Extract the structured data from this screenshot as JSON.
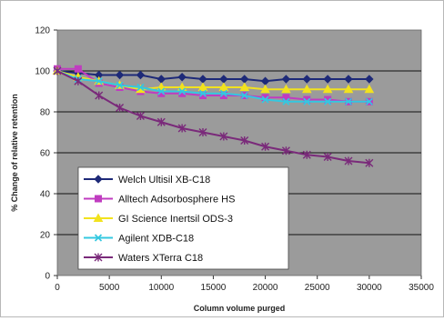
{
  "chart_data": {
    "type": "line",
    "title": "",
    "xlabel": "Column volume purged",
    "ylabel": "% Change of relative retention",
    "xlim": [
      0,
      35000
    ],
    "ylim": [
      0,
      120
    ],
    "xticks": [
      0,
      5000,
      10000,
      15000,
      20000,
      25000,
      30000,
      35000
    ],
    "yticks": [
      0,
      20,
      40,
      60,
      80,
      100,
      120
    ],
    "grid": "horizontal",
    "legend_position": "lower-left",
    "plot_background": "#9b9b9b",
    "series": [
      {
        "name": "Welch Ultisil XB-C18",
        "color": "#1e2a78",
        "marker": "diamond",
        "x": [
          0,
          2000,
          4000,
          6000,
          8000,
          10000,
          12000,
          14000,
          16000,
          18000,
          20000,
          22000,
          24000,
          26000,
          28000,
          30000
        ],
        "y": [
          100,
          99,
          98,
          98,
          98,
          96,
          97,
          96,
          96,
          96,
          95,
          96,
          96,
          96,
          96,
          96
        ]
      },
      {
        "name": "Alltech Adsorbosphere HS",
        "color": "#c03cc0",
        "marker": "square",
        "x": [
          0,
          2000,
          4000,
          6000,
          8000,
          10000,
          12000,
          14000,
          16000,
          18000,
          20000,
          22000,
          24000,
          26000,
          28000,
          30000
        ],
        "y": [
          101,
          101,
          94,
          92,
          90,
          89,
          89,
          88,
          88,
          88,
          87,
          87,
          86,
          86,
          85,
          85
        ]
      },
      {
        "name": "GI Science Inertsil ODS-3",
        "color": "#f2e21e",
        "marker": "triangle",
        "x": [
          0,
          2000,
          4000,
          6000,
          8000,
          10000,
          12000,
          14000,
          16000,
          18000,
          20000,
          22000,
          24000,
          26000,
          28000,
          30000
        ],
        "y": [
          100,
          97,
          95,
          93,
          91,
          92,
          92,
          92,
          92,
          92,
          91,
          91,
          91,
          91,
          91,
          91
        ]
      },
      {
        "name": "Agilent XDB-C18",
        "color": "#34c8e0",
        "marker": "x",
        "x": [
          0,
          2000,
          4000,
          6000,
          8000,
          10000,
          12000,
          14000,
          16000,
          18000,
          20000,
          22000,
          24000,
          26000,
          28000,
          30000
        ],
        "y": [
          100,
          96,
          95,
          93,
          92,
          90,
          90,
          89,
          89,
          88,
          86,
          85,
          85,
          85,
          85,
          85
        ]
      },
      {
        "name": "Waters XTerra C18",
        "color": "#7a2a7a",
        "marker": "star",
        "x": [
          0,
          2000,
          4000,
          6000,
          8000,
          10000,
          12000,
          14000,
          16000,
          18000,
          20000,
          22000,
          24000,
          26000,
          28000,
          30000
        ],
        "y": [
          100,
          95,
          88,
          82,
          78,
          75,
          72,
          70,
          68,
          66,
          63,
          61,
          59,
          58,
          56,
          55
        ]
      }
    ]
  }
}
